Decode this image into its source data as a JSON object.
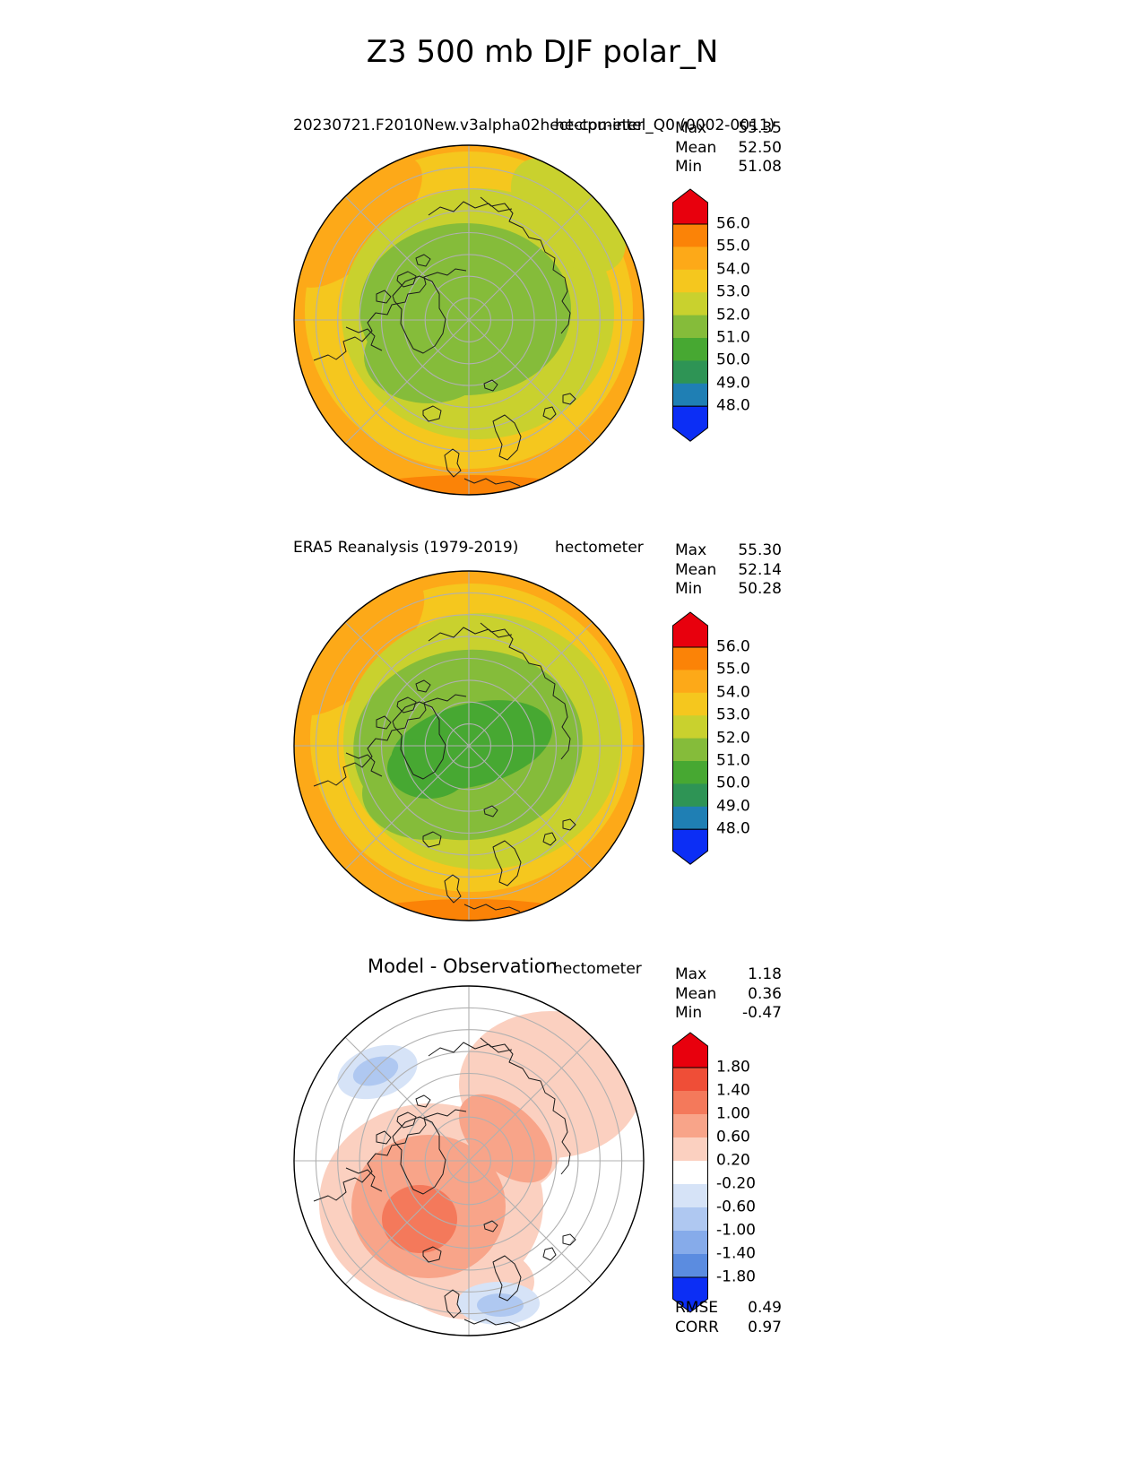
{
  "figure_title": "Z3 500 mb DJF polar_N",
  "panels": [
    {
      "name": "model",
      "title": "20230721.F2010New.v3alpha02hect-cpu-intel_Q0 (0002-0011)",
      "units": "hectometer",
      "stats": {
        "rows": [
          {
            "label": "Max",
            "value": "55.35"
          },
          {
            "label": "Mean",
            "value": "52.50"
          },
          {
            "label": "Min",
            "value": "51.08"
          }
        ]
      }
    },
    {
      "name": "reference",
      "title": "ERA5 Reanalysis (1979-2019)",
      "units": "hectometer",
      "stats": {
        "rows": [
          {
            "label": "Max",
            "value": "55.30"
          },
          {
            "label": "Mean",
            "value": "52.14"
          },
          {
            "label": "Min",
            "value": "50.28"
          }
        ]
      }
    },
    {
      "name": "difference",
      "title": "Model - Observation",
      "units": "hectometer",
      "stats": {
        "rows": [
          {
            "label": "Max",
            "value": "1.18"
          },
          {
            "label": "Mean",
            "value": "0.36"
          },
          {
            "label": "Min",
            "value": "-0.47"
          }
        ]
      },
      "metrics": {
        "rows": [
          {
            "label": "RMSE",
            "value": "0.49"
          },
          {
            "label": "CORR",
            "value": "0.97"
          }
        ]
      }
    }
  ],
  "chart_data": [
    {
      "type": "heatmap",
      "subtype": "filled-contour polar stereographic map",
      "region": "polar_N",
      "variable": "Z3",
      "level": "500 mb",
      "season": "DJF",
      "title": "20230721.F2010New.v3alpha02hect-cpu-intel_Q0 (0002-0011)",
      "units": "hectometer",
      "stats": {
        "max": 55.35,
        "mean": 52.5,
        "min": 51.08
      },
      "colorbar": {
        "extend": "both",
        "levels": [
          56.0,
          55.0,
          54.0,
          53.0,
          52.0,
          51.0,
          50.0,
          49.0,
          48.0
        ],
        "tick_labels": [
          "56.0",
          "55.0",
          "54.0",
          "53.0",
          "52.0",
          "51.0",
          "50.0",
          "49.0",
          "48.0"
        ],
        "segment_colors": [
          "#FB8307",
          "#FDA918",
          "#F5C71E",
          "#C9D12E",
          "#85BC3A",
          "#47A832",
          "#2E9455",
          "#1F7FB4"
        ],
        "over_color": "#E8000D",
        "under_color": "#0C2EF5"
      }
    },
    {
      "type": "heatmap",
      "subtype": "filled-contour polar stereographic map",
      "region": "polar_N",
      "variable": "Z3",
      "level": "500 mb",
      "season": "DJF",
      "title": "ERA5 Reanalysis (1979-2019)",
      "units": "hectometer",
      "stats": {
        "max": 55.3,
        "mean": 52.14,
        "min": 50.28
      },
      "colorbar": {
        "extend": "both",
        "levels": [
          56.0,
          55.0,
          54.0,
          53.0,
          52.0,
          51.0,
          50.0,
          49.0,
          48.0
        ],
        "tick_labels": [
          "56.0",
          "55.0",
          "54.0",
          "53.0",
          "52.0",
          "51.0",
          "50.0",
          "49.0",
          "48.0"
        ],
        "segment_colors": [
          "#FB8307",
          "#FDA918",
          "#F5C71E",
          "#C9D12E",
          "#85BC3A",
          "#47A832",
          "#2E9455",
          "#1F7FB4"
        ],
        "over_color": "#E8000D",
        "under_color": "#0C2EF5"
      }
    },
    {
      "type": "heatmap",
      "subtype": "filled-contour polar stereographic difference map",
      "region": "polar_N",
      "variable": "Z3",
      "level": "500 mb",
      "season": "DJF",
      "title": "Model - Observation",
      "units": "hectometer",
      "stats": {
        "max": 1.18,
        "mean": 0.36,
        "min": -0.47
      },
      "metrics": {
        "rmse": 0.49,
        "corr": 0.97
      },
      "colorbar": {
        "extend": "both",
        "levels": [
          1.8,
          1.4,
          1.0,
          0.6,
          0.2,
          -0.2,
          -0.6,
          -1.0,
          -1.4,
          -1.8
        ],
        "tick_labels": [
          "1.80",
          "1.40",
          "1.00",
          "0.60",
          "0.20",
          "-0.20",
          "-0.60",
          "-1.00",
          "-1.40",
          "-1.80"
        ],
        "segment_colors": [
          "#EF4E37",
          "#F4795B",
          "#F8A489",
          "#FBD0C0",
          "#FFFFFF",
          "#D6E3F7",
          "#AFC8F1",
          "#86ABEA",
          "#5B8CE0"
        ],
        "over_color": "#E8000D",
        "under_color": "#0C2EF5"
      }
    }
  ]
}
